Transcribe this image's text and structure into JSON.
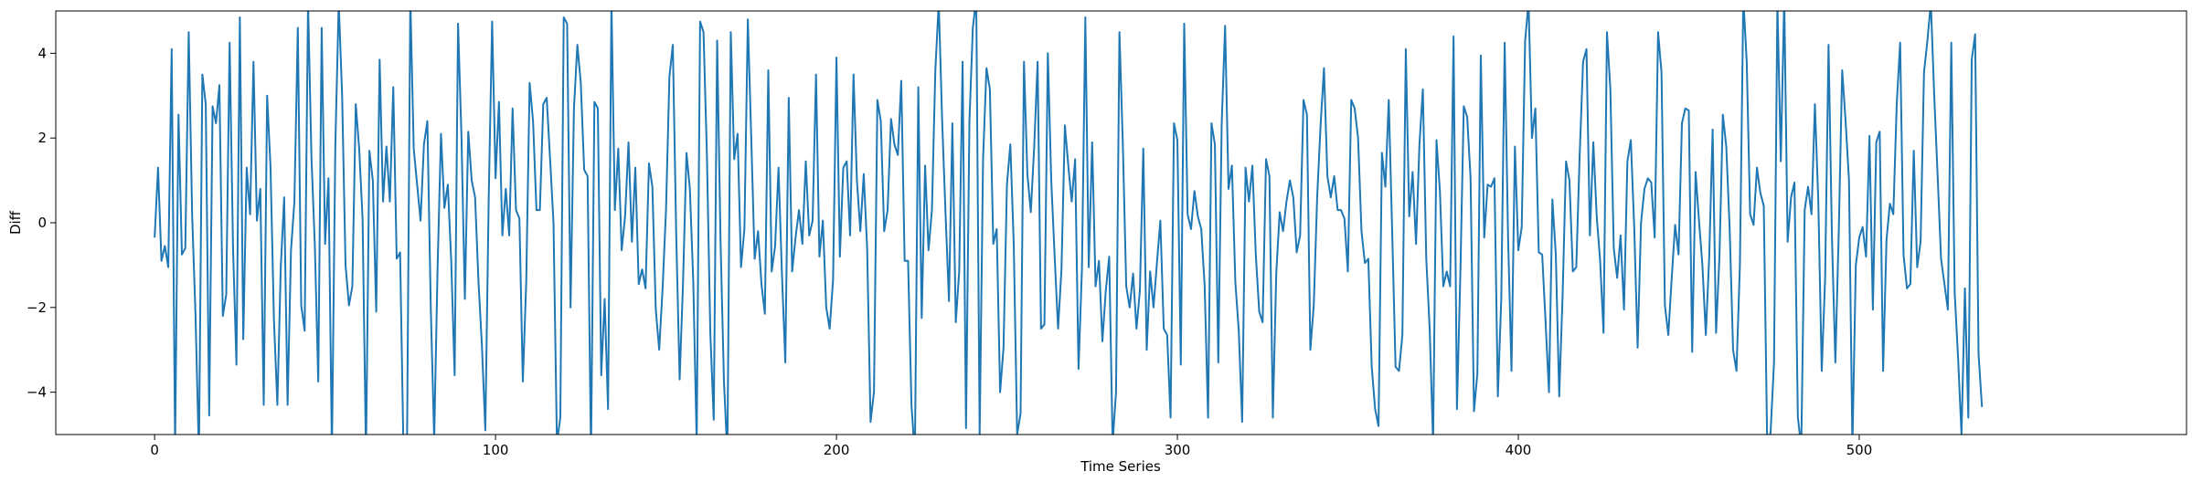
{
  "chart_data": {
    "type": "line",
    "title": "",
    "xlabel": "Time Series",
    "ylabel": "Diff",
    "xlim": [
      -29,
      596
    ],
    "ylim": [
      -5,
      5
    ],
    "xticks": [
      0,
      100,
      200,
      300,
      400,
      500
    ],
    "xtick_labels": [
      "0",
      "100",
      "200",
      "300",
      "400",
      "500"
    ],
    "yticks": [
      -4,
      -2,
      0,
      2,
      4
    ],
    "ytick_labels": [
      "−4",
      "−2",
      "0",
      "2",
      "4"
    ],
    "grid": false,
    "legend": "none",
    "line_color": "#1f77b4",
    "series": [
      {
        "x_start": 0,
        "x_step": 1,
        "values": [
          -0.35,
          1.3,
          -0.9,
          -0.55,
          -1.05,
          4.1,
          -5.3,
          2.55,
          -0.75,
          -0.6,
          4.5,
          0.2,
          -2.2,
          -5.5,
          3.5,
          2.8,
          -4.55,
          2.75,
          2.35,
          3.25,
          -2.2,
          -1.7,
          4.25,
          -0.6,
          -3.35,
          4.85,
          -2.75,
          1.3,
          0.2,
          3.8,
          0.05,
          0.8,
          -4.3,
          3.0,
          1.3,
          -2.3,
          -4.3,
          -1.05,
          0.6,
          -4.3,
          -0.65,
          0.5,
          4.6,
          -1.95,
          -2.55,
          5.2,
          1.55,
          -0.55,
          -3.75,
          4.6,
          -0.5,
          1.05,
          -5.4,
          1.8,
          5.2,
          3.0,
          -1.0,
          -1.95,
          -1.5,
          2.8,
          1.75,
          0.1,
          -5.5,
          1.7,
          1.0,
          -2.1,
          3.85,
          0.5,
          1.8,
          0.5,
          3.2,
          -0.85,
          -0.7,
          -5.4,
          -5.6,
          5.3,
          1.75,
          0.9,
          0.05,
          1.85,
          2.4,
          -2.0,
          -5.1,
          -1.05,
          2.1,
          0.35,
          0.9,
          -0.9,
          -3.6,
          4.7,
          2.05,
          -1.8,
          2.15,
          1.0,
          0.6,
          -1.4,
          -2.9,
          -4.9,
          0.6,
          4.75,
          1.05,
          2.85,
          -0.3,
          0.8,
          -0.3,
          2.7,
          0.3,
          0.1,
          -3.75,
          -1.4,
          3.3,
          2.4,
          0.3,
          0.3,
          2.8,
          2.95,
          1.5,
          0.0,
          -5.2,
          -4.6,
          4.85,
          4.7,
          -2.0,
          2.7,
          4.2,
          3.3,
          1.25,
          1.1,
          -5.5,
          2.85,
          2.7,
          -3.6,
          -1.8,
          -4.4,
          5.2,
          0.3,
          1.75,
          -0.65,
          0.15,
          1.9,
          -0.45,
          1.3,
          -1.45,
          -1.1,
          -1.55,
          1.4,
          0.85,
          -2.05,
          -3.0,
          -1.55,
          0.3,
          3.45,
          4.2,
          -0.3,
          -3.7,
          -1.4,
          1.65,
          0.8,
          -1.4,
          -5.2,
          4.75,
          4.5,
          1.6,
          -2.6,
          -4.65,
          4.3,
          -0.45,
          -3.75,
          -5.5,
          4.5,
          1.5,
          2.1,
          -1.05,
          -0.15,
          4.8,
          2.0,
          -0.85,
          -0.2,
          -1.45,
          -2.15,
          3.6,
          -1.15,
          -0.55,
          1.3,
          -1.2,
          -3.3,
          2.95,
          -1.15,
          -0.35,
          0.3,
          -0.5,
          1.45,
          -0.3,
          0.05,
          3.5,
          -0.8,
          0.05,
          -2.0,
          -2.5,
          -1.35,
          3.9,
          -0.8,
          1.3,
          1.45,
          -0.3,
          3.5,
          1.0,
          -0.2,
          1.15,
          -0.6,
          -4.7,
          -4.0,
          2.9,
          2.4,
          -0.2,
          0.3,
          2.45,
          1.85,
          1.6,
          3.35,
          -0.9,
          -0.9,
          -4.3,
          -5.5,
          3.2,
          -2.25,
          1.35,
          -0.65,
          0.3,
          3.6,
          5.2,
          2.4,
          0.2,
          -1.85,
          2.35,
          -2.35,
          -1.15,
          3.8,
          -4.85,
          2.4,
          4.6,
          5.3,
          -5.0,
          1.5,
          3.65,
          3.15,
          -0.5,
          -0.15,
          -4.0,
          -2.95,
          0.9,
          1.85,
          -0.5,
          -5.0,
          -4.5,
          3.8,
          1.15,
          0.25,
          1.8,
          3.8,
          -2.5,
          -2.4,
          4.0,
          1.0,
          -0.8,
          -2.5,
          -1.1,
          2.3,
          1.35,
          0.5,
          1.5,
          -3.45,
          -1.1,
          4.85,
          -1.05,
          1.9,
          -1.5,
          -0.9,
          -2.8,
          -1.6,
          -0.8,
          -5.2,
          -4.0,
          4.5,
          1.85,
          -1.5,
          -2.0,
          -1.2,
          -2.5,
          -1.6,
          1.75,
          -3.0,
          -1.15,
          -2.0,
          -0.95,
          0.05,
          -2.5,
          -2.65,
          -4.6,
          2.35,
          1.95,
          -3.35,
          4.7,
          0.2,
          -0.15,
          0.75,
          0.15,
          -0.15,
          -1.5,
          -4.6,
          2.35,
          1.85,
          -3.3,
          2.35,
          4.65,
          0.8,
          1.35,
          -1.4,
          -2.55,
          -4.7,
          1.3,
          0.5,
          1.35,
          -0.75,
          -2.1,
          -2.35,
          1.5,
          1.1,
          -4.6,
          -1.2,
          0.25,
          -0.2,
          0.5,
          1.0,
          0.6,
          -0.7,
          -0.3,
          2.9,
          2.55,
          -3.0,
          -1.95,
          0.6,
          2.3,
          3.65,
          1.1,
          0.6,
          1.1,
          0.3,
          0.3,
          0.1,
          -1.15,
          2.9,
          2.7,
          2.0,
          -0.2,
          -0.95,
          -0.85,
          -3.4,
          -4.4,
          -4.8,
          1.65,
          0.85,
          2.9,
          -0.2,
          -3.4,
          -3.5,
          -2.65,
          4.1,
          0.15,
          1.2,
          -0.5,
          1.85,
          3.15,
          -0.85,
          -2.5,
          -5.2,
          1.95,
          0.75,
          -1.5,
          -1.15,
          -1.5,
          4.4,
          -4.4,
          -1.2,
          2.75,
          2.5,
          1.05,
          -4.45,
          -3.55,
          3.95,
          -0.35,
          0.9,
          0.85,
          1.05,
          -4.1,
          -1.8,
          4.25,
          -0.35,
          -3.5,
          1.8,
          -0.65,
          -0.1,
          4.3,
          5.2,
          2.0,
          2.7,
          -0.7,
          -0.75,
          -2.35,
          -4.0,
          0.55,
          -0.75,
          -4.1,
          -1.7,
          1.45,
          1.0,
          -1.15,
          -1.05,
          1.6,
          3.8,
          4.1,
          -0.3,
          1.9,
          0.15,
          -0.9,
          -2.6,
          4.5,
          3.15,
          -0.6,
          -1.3,
          -0.3,
          -2.05,
          1.45,
          1.95,
          -0.1,
          -2.95,
          0.0,
          0.8,
          1.05,
          0.95,
          -0.35,
          4.5,
          3.55,
          -1.95,
          -2.65,
          -1.3,
          -0.05,
          -0.75,
          2.35,
          2.7,
          2.65,
          -3.05,
          1.2,
          0.05,
          -1.0,
          -2.65,
          -0.8,
          2.2,
          -2.6,
          -0.8,
          2.55,
          1.8,
          -0.15,
          -3.0,
          -3.5,
          -1.0,
          5.3,
          3.8,
          0.2,
          -0.05,
          1.3,
          0.7,
          0.4,
          -5.2,
          -4.95,
          -3.3,
          5.2,
          1.45,
          5.3,
          -0.45,
          0.6,
          0.95,
          -4.6,
          -5.3,
          0.3,
          0.85,
          0.2,
          2.8,
          0.5,
          -3.5,
          -1.3,
          4.2,
          -0.35,
          -3.3,
          -0.2,
          3.6,
          2.4,
          1.0,
          -5.3,
          -1.0,
          -0.35,
          -0.1,
          -0.8,
          2.05,
          -2.05,
          1.9,
          2.15,
          -3.5,
          -0.4,
          0.45,
          0.2,
          2.8,
          4.25,
          -0.75,
          -1.55,
          -1.45,
          1.7,
          -1.05,
          -0.45,
          3.55,
          4.3,
          5.2,
          3.0,
          1.1,
          -0.85,
          -1.45,
          -2.05,
          4.25,
          -1.65,
          -3.2,
          -5.0,
          -1.55,
          -4.6,
          3.85,
          4.45,
          -3.1,
          -4.35
        ]
      }
    ]
  }
}
